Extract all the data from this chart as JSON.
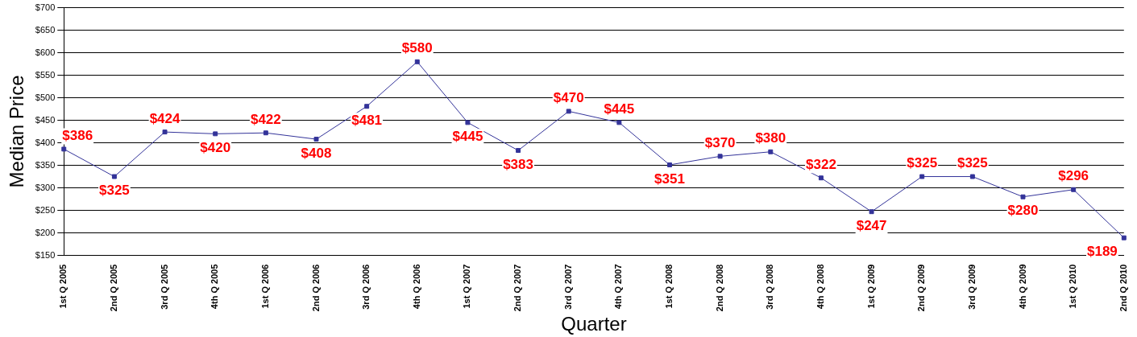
{
  "chart_data": {
    "type": "line",
    "xlabel": "Quarter",
    "ylabel": "Median Price",
    "categories": [
      "1st Q 2005",
      "2nd Q 2005",
      "3rd Q 2005",
      "4th Q 2005",
      "1st Q 2006",
      "2nd Q 2006",
      "3rd Q 2006",
      "4th Q 2006",
      "1st Q 2007",
      "2nd Q 2007",
      "3rd Q 2007",
      "4th Q 2007",
      "1st Q 2008",
      "2nd Q 2008",
      "3rd Q 2008",
      "4th Q 2008",
      "1st Q 2009",
      "2nd Q 2009",
      "3rd Q 2009",
      "4th Q 2009",
      "1st Q 2010",
      "2nd Q 2010"
    ],
    "series": [
      {
        "color": "#333399",
        "values": [
          386,
          325,
          424,
          420,
          422,
          408,
          481,
          580,
          445,
          383,
          470,
          445,
          351,
          370,
          380,
          322,
          247,
          325,
          325,
          280,
          296,
          189
        ],
        "value_labels": [
          "$386",
          "$325",
          "$424",
          "$420",
          "$422",
          "$408",
          "$481",
          "$580",
          "$445",
          "$383",
          "$470",
          "$445",
          "$351",
          "$370",
          "$380",
          "$322",
          "$247",
          "$325",
          "$325",
          "$280",
          "$296",
          "$189"
        ]
      }
    ],
    "ylim": [
      150,
      700
    ],
    "yticks": [
      {
        "value": 150,
        "label": "$150"
      },
      {
        "value": 200,
        "label": "$200"
      },
      {
        "value": 250,
        "label": "$250"
      },
      {
        "value": 300,
        "label": "$300"
      },
      {
        "value": 350,
        "label": "$350"
      },
      {
        "value": 400,
        "label": "$400"
      },
      {
        "value": 450,
        "label": "$450"
      },
      {
        "value": 500,
        "label": "$500"
      },
      {
        "value": 550,
        "label": "$550"
      },
      {
        "value": 600,
        "label": "$600"
      },
      {
        "value": 650,
        "label": "$650"
      },
      {
        "value": 700,
        "label": "$700"
      }
    ],
    "grid": "y",
    "legend": false,
    "marker": "square",
    "line_style": "solid"
  }
}
